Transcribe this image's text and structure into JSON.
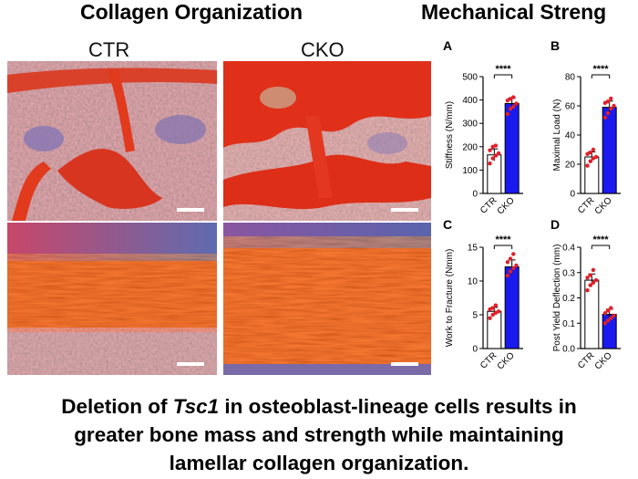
{
  "headings": {
    "left": "Collagen Organization",
    "right": "Mechanical Streng"
  },
  "micrographs": {
    "col1_label": "CTR",
    "col2_label": "CKO"
  },
  "caption": {
    "line1_pre": "Deletion of ",
    "line1_gene": "Tsc1",
    "line1_post": " in osteoblast-lineage cells results in",
    "line2": "greater bone mass and strength while maintaining",
    "line3": "lamellar collagen organization."
  },
  "colors": {
    "ctr_fill": "#ffffff",
    "cko_fill": "#1a1aee",
    "points": "#e0202a",
    "tissue_red": "#e8341a"
  },
  "significance": "****",
  "chart_data": [
    {
      "type": "bar",
      "panel": "A",
      "categories": [
        "CTR",
        "CKO"
      ],
      "values": [
        165,
        385
      ],
      "points": [
        [
          128,
          150,
          162,
          172,
          185,
          200,
          205
        ],
        [
          340,
          362,
          372,
          385,
          398,
          405,
          412
        ]
      ],
      "ylabel": "Stiffness (N/mm)",
      "ylim": [
        0,
        500
      ],
      "yticks": [
        0,
        100,
        200,
        300,
        400,
        500
      ]
    },
    {
      "type": "bar",
      "panel": "B",
      "categories": [
        "CTR",
        "CKO"
      ],
      "values": [
        25,
        59
      ],
      "points": [
        [
          19,
          22,
          24,
          25,
          27,
          28,
          30
        ],
        [
          52,
          55,
          58,
          60,
          62,
          63,
          65
        ]
      ],
      "ylabel": "Maximal Load (N)",
      "ylim": [
        0,
        80
      ],
      "yticks": [
        0,
        20,
        40,
        60,
        80
      ]
    },
    {
      "type": "bar",
      "panel": "C",
      "categories": [
        "CTR",
        "CKO"
      ],
      "values": [
        5.5,
        12.1
      ],
      "points": [
        [
          4.5,
          5.0,
          5.3,
          5.5,
          5.8,
          6.0,
          6.4
        ],
        [
          10.8,
          11.4,
          11.9,
          12.3,
          12.8,
          13.3,
          14.0
        ]
      ],
      "ylabel": "Work to Fracture (Nmm)",
      "ylim": [
        0,
        15
      ],
      "yticks": [
        0,
        5,
        10,
        15
      ]
    },
    {
      "type": "bar",
      "panel": "D",
      "categories": [
        "CTR",
        "CKO"
      ],
      "values": [
        0.27,
        0.135
      ],
      "points": [
        [
          0.23,
          0.25,
          0.26,
          0.27,
          0.28,
          0.29,
          0.31
        ],
        [
          0.1,
          0.11,
          0.12,
          0.13,
          0.14,
          0.15,
          0.16
        ]
      ],
      "ylabel": "Post Yield Deflection (mm)",
      "ylim": [
        0,
        0.4
      ],
      "yticks": [
        0.0,
        0.1,
        0.2,
        0.3,
        0.4
      ]
    }
  ]
}
